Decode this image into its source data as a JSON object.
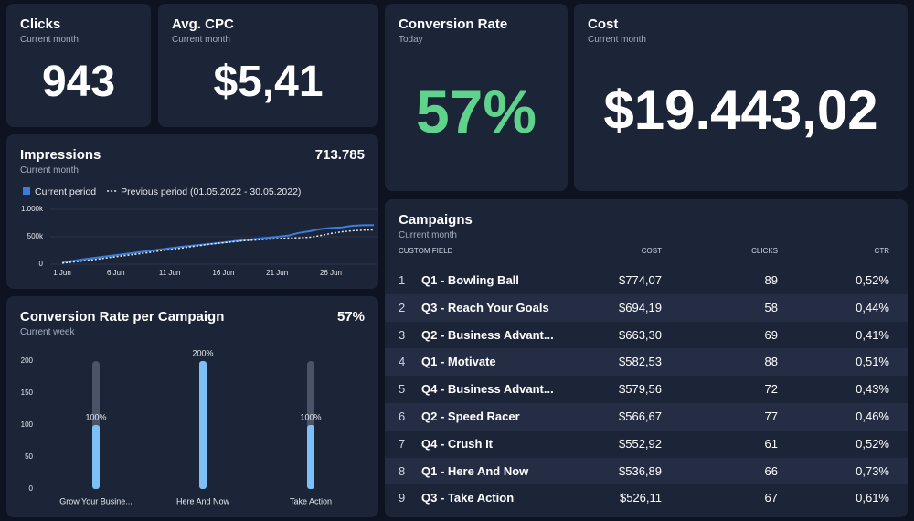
{
  "cards": [
    {
      "title": "Clicks",
      "subtitle": "Current month",
      "value": "943"
    },
    {
      "title": "Avg. CPC",
      "subtitle": "Current month",
      "value": "$5,41"
    },
    {
      "title": "Conversion Rate",
      "subtitle": "Today",
      "value": "57%"
    },
    {
      "title": "Cost",
      "subtitle": "Current month",
      "value": "$19.443,02"
    }
  ],
  "chart_data": [
    {
      "type": "line",
      "title": "Impressions",
      "subtitle": "Current month",
      "total": "713.785",
      "categories": [
        "1 Jun",
        null,
        null,
        null,
        null,
        "6 Jun",
        null,
        null,
        null,
        null,
        "11 Jun",
        null,
        null,
        null,
        null,
        "16 Jun",
        null,
        null,
        null,
        null,
        "21 Jun",
        null,
        null,
        null,
        null,
        "26 Jun",
        null,
        null,
        null,
        null
      ],
      "series": [
        {
          "name": "Current period",
          "color": "#3b7ddd",
          "values": [
            30000,
            60000,
            90000,
            115000,
            140000,
            165000,
            190000,
            215000,
            240000,
            265000,
            290000,
            315000,
            335000,
            355000,
            375000,
            395000,
            420000,
            440000,
            460000,
            480000,
            500000,
            520000,
            570000,
            600000,
            640000,
            660000,
            670000,
            700000,
            710000,
            714000
          ]
        },
        {
          "name": "Previous period (01.05.2022 - 30.05.2022)",
          "color": "#e5e7eb",
          "values": [
            20000,
            40000,
            60000,
            85000,
            110000,
            135000,
            160000,
            185000,
            210000,
            240000,
            265000,
            290000,
            320000,
            345000,
            370000,
            390000,
            410000,
            430000,
            440000,
            455000,
            465000,
            475000,
            480000,
            490000,
            520000,
            560000,
            590000,
            610000,
            620000,
            625000
          ]
        }
      ],
      "ylim": [
        0,
        1000000
      ],
      "yticks": [
        0,
        {
          "value": 500000,
          "label": "500k"
        },
        {
          "value": 1000000,
          "label": "1.000k"
        }
      ],
      "grid": true
    },
    {
      "type": "bar",
      "title": "Conversion Rate per Campaign",
      "subtitle": "Current week",
      "total": "57%",
      "categories": [
        "Grow Your Busine...",
        "Here And Now",
        "Take Action"
      ],
      "values": [
        100,
        200,
        100
      ],
      "value_labels": [
        "100%",
        "200%",
        "100%"
      ],
      "color": "#7cc0f5",
      "ylim": [
        0,
        200
      ],
      "yticks": [
        0,
        50,
        100,
        150,
        200
      ]
    }
  ],
  "table": {
    "title": "Campaigns",
    "subtitle": "Current month",
    "headers": [
      "CUSTOM FIELD",
      "COST",
      "CLICKS",
      "CTR"
    ],
    "rows": [
      [
        "1",
        "Q1 - Bowling Ball",
        "$774,07",
        "89",
        "0,52%"
      ],
      [
        "2",
        "Q3 - Reach Your Goals",
        "$694,19",
        "58",
        "0,44%"
      ],
      [
        "3",
        "Q2 - Business Advant...",
        "$663,30",
        "69",
        "0,41%"
      ],
      [
        "4",
        "Q1 - Motivate",
        "$582,53",
        "88",
        "0,51%"
      ],
      [
        "5",
        "Q4 - Business Advant...",
        "$579,56",
        "72",
        "0,43%"
      ],
      [
        "6",
        "Q2 - Speed Racer",
        "$566,67",
        "77",
        "0,46%"
      ],
      [
        "7",
        "Q4 - Crush It",
        "$552,92",
        "61",
        "0,52%"
      ],
      [
        "8",
        "Q1 - Here And Now",
        "$536,89",
        "66",
        "0,73%"
      ],
      [
        "9",
        "Q3 - Take Action",
        "$526,11",
        "67",
        "0,61%"
      ]
    ]
  }
}
